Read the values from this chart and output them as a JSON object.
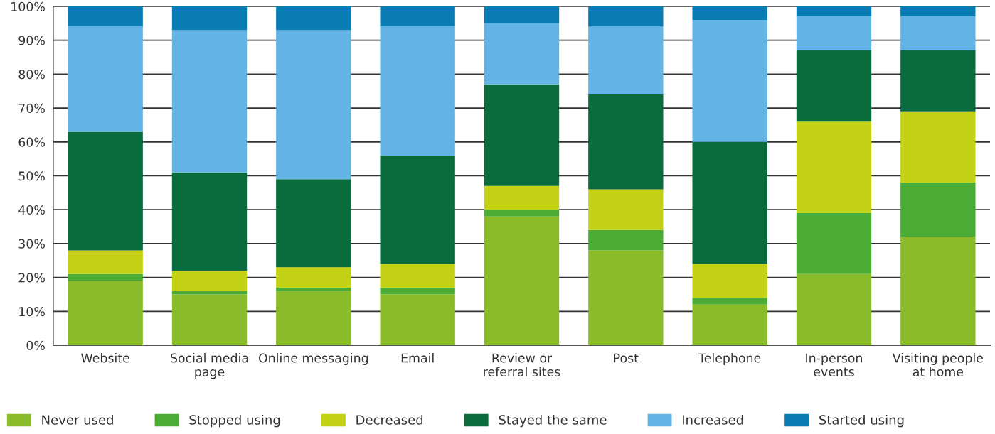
{
  "chart_data": {
    "type": "bar",
    "stacked": true,
    "categories": [
      "Website",
      "Social media\npage",
      "Online messaging",
      "Email",
      "Review or\nreferral sites",
      "Post",
      "Telephone",
      "In-person\nevents",
      "Visiting people\nat home"
    ],
    "series": [
      {
        "name": "Never used",
        "color": "#8abb2a",
        "values": [
          19,
          15,
          16,
          15,
          38,
          28,
          12,
          21,
          32
        ]
      },
      {
        "name": "Stopped using",
        "color": "#4aab35",
        "values": [
          2,
          1,
          1,
          2,
          2,
          6,
          2,
          18,
          16
        ]
      },
      {
        "name": "Decreased",
        "color": "#c3d217",
        "values": [
          7,
          6,
          6,
          7,
          7,
          12,
          10,
          27,
          21
        ]
      },
      {
        "name": "Stayed the same",
        "color": "#0a6b3c",
        "values": [
          35,
          29,
          26,
          32,
          30,
          28,
          36,
          21,
          18
        ]
      },
      {
        "name": "Increased",
        "color": "#63b4e4",
        "values": [
          31,
          42,
          44,
          38,
          18,
          20,
          36,
          10,
          10
        ]
      },
      {
        "name": "Started using",
        "color": "#097db3",
        "values": [
          6,
          7,
          7,
          6,
          5,
          6,
          4,
          3,
          3
        ]
      }
    ],
    "ylim": [
      0,
      100
    ],
    "yticks": [
      {
        "value": 0,
        "label": "0%"
      },
      {
        "value": 10,
        "label": "10%"
      },
      {
        "value": 20,
        "label": "20%"
      },
      {
        "value": 30,
        "label": "30%"
      },
      {
        "value": 40,
        "label": "40%"
      },
      {
        "value": 50,
        "label": "50%"
      },
      {
        "value": 60,
        "label": "60%"
      },
      {
        "value": 70,
        "label": "70%"
      },
      {
        "value": 80,
        "label": "80%"
      },
      {
        "value": 90,
        "label": "90%"
      },
      {
        "value": 100,
        "label": "100%"
      }
    ],
    "grid": "y",
    "legend": "bottom"
  }
}
